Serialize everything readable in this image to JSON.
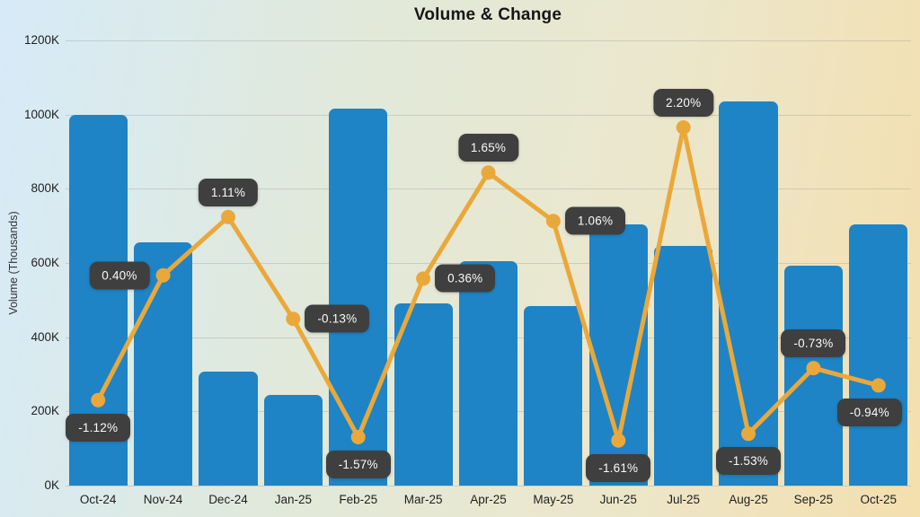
{
  "chart_data": {
    "type": "combo-bar-line",
    "title": "Volume & Change",
    "ylabel": "Volume (Thousands)",
    "xlabel": "",
    "legend": "none",
    "grid": "horizontal",
    "categories": [
      "Oct-24",
      "Nov-24",
      "Dec-24",
      "Jan-25",
      "Feb-25",
      "Mar-25",
      "Apr-25",
      "May-25",
      "Jun-25",
      "Jul-25",
      "Aug-25",
      "Sep-25",
      "Oct-25"
    ],
    "series": [
      {
        "name": "Volume",
        "type": "bar",
        "unit": "thousands",
        "values": [
          1000,
          655,
          308,
          245,
          1015,
          492,
          605,
          485,
          705,
          645,
          1035,
          592,
          705
        ]
      },
      {
        "name": "Change",
        "type": "line",
        "unit": "percent",
        "values": [
          -1.12,
          0.4,
          1.11,
          -0.13,
          -1.57,
          0.36,
          1.65,
          1.06,
          -1.61,
          2.2,
          -1.53,
          -0.73,
          -0.94
        ],
        "point_labels": [
          "-1.12%",
          "0.40%",
          "1.11%",
          "-0.13%",
          "-1.57%",
          "0.36%",
          "1.65%",
          "1.06%",
          "-1.61%",
          "2.20%",
          "-1.53%",
          "-0.73%",
          "-0.94%"
        ],
        "label_positions": [
          "below",
          "left",
          "above",
          "right",
          "below",
          "right",
          "above",
          "right",
          "below",
          "above",
          "below",
          "above",
          "below-left"
        ]
      }
    ],
    "ylim": [
      0,
      1200
    ],
    "yticks": {
      "values": [
        0,
        200,
        400,
        600,
        800,
        1000,
        1200
      ],
      "labels": [
        "0K",
        "200K",
        "400K",
        "600K",
        "800K",
        "1000K",
        "1200K"
      ]
    },
    "line_axis_range": [
      -2.16,
      3.26
    ],
    "colors": {
      "bar": "#1e84c5",
      "line": "#eaa83b",
      "label_bg": "#3f3f3f",
      "label_text": "#fafafa",
      "grid": "rgba(110,110,110,0.22)",
      "axis_text": "#1f1f1f",
      "title_text": "#161616",
      "background_gradient": [
        "#d6eaf8",
        "#e1e9da",
        "#ebe7cd",
        "#f4dfae"
      ]
    }
  }
}
